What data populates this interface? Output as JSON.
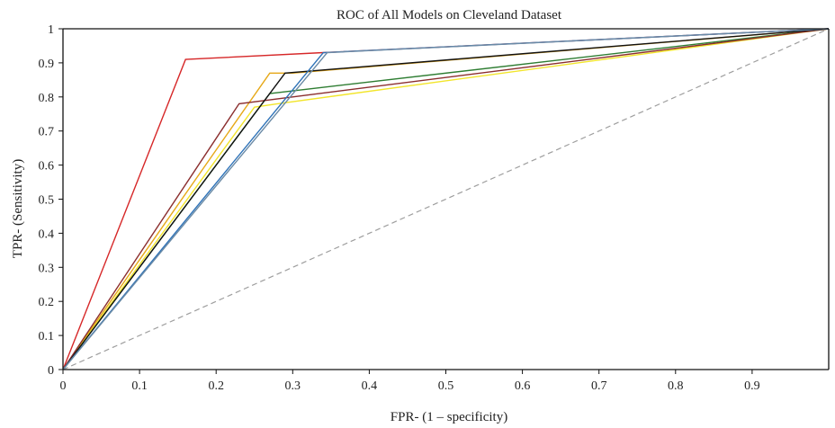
{
  "chart_data": {
    "type": "line",
    "title": "ROC of All Models on Cleveland Dataset",
    "xlabel": "FPR- (1 – specificity)",
    "ylabel": "TPR- (Sensitivity)",
    "xlim": [
      0,
      1
    ],
    "ylim": [
      0,
      1
    ],
    "x_ticks": [
      "0",
      "0.1",
      "0.2",
      "0.3",
      "0.4",
      "0.5",
      "0.6",
      "0.7",
      "0.8",
      "0.9"
    ],
    "y_ticks": [
      "0",
      "0.1",
      "0.2",
      "0.3",
      "0.4",
      "0.5",
      "0.6",
      "0.7",
      "0.8",
      "0.9",
      "1"
    ],
    "grid": false,
    "legend": "none",
    "series": [
      {
        "color": "#9e9e9e",
        "dashed": true,
        "x": [
          0,
          1
        ],
        "y": [
          0,
          1
        ]
      },
      {
        "color": "#d62728",
        "x": [
          0,
          0.16,
          0.34,
          1
        ],
        "y": [
          0,
          0.91,
          0.93,
          1
        ]
      },
      {
        "color": "#e6a817",
        "x": [
          0,
          0.27,
          0.3,
          1
        ],
        "y": [
          0,
          0.87,
          0.87,
          1
        ]
      },
      {
        "color": "#f2e52b",
        "x": [
          0,
          0.25,
          0.28,
          1
        ],
        "y": [
          0,
          0.77,
          0.78,
          1
        ]
      },
      {
        "color": "#2e7d32",
        "x": [
          0,
          0.27,
          1
        ],
        "y": [
          0,
          0.81,
          1
        ]
      },
      {
        "color": "#8b2e2e",
        "x": [
          0,
          0.23,
          1
        ],
        "y": [
          0,
          0.78,
          1
        ]
      },
      {
        "color": "#111111",
        "x": [
          0,
          0.29,
          1
        ],
        "y": [
          0,
          0.87,
          1
        ]
      },
      {
        "color": "#2f73b8",
        "x": [
          0,
          0.34,
          1
        ],
        "y": [
          0,
          0.93,
          1
        ]
      },
      {
        "color": "#6a8aa6",
        "x": [
          0,
          0.345,
          1
        ],
        "y": [
          0,
          0.93,
          1
        ]
      }
    ]
  }
}
